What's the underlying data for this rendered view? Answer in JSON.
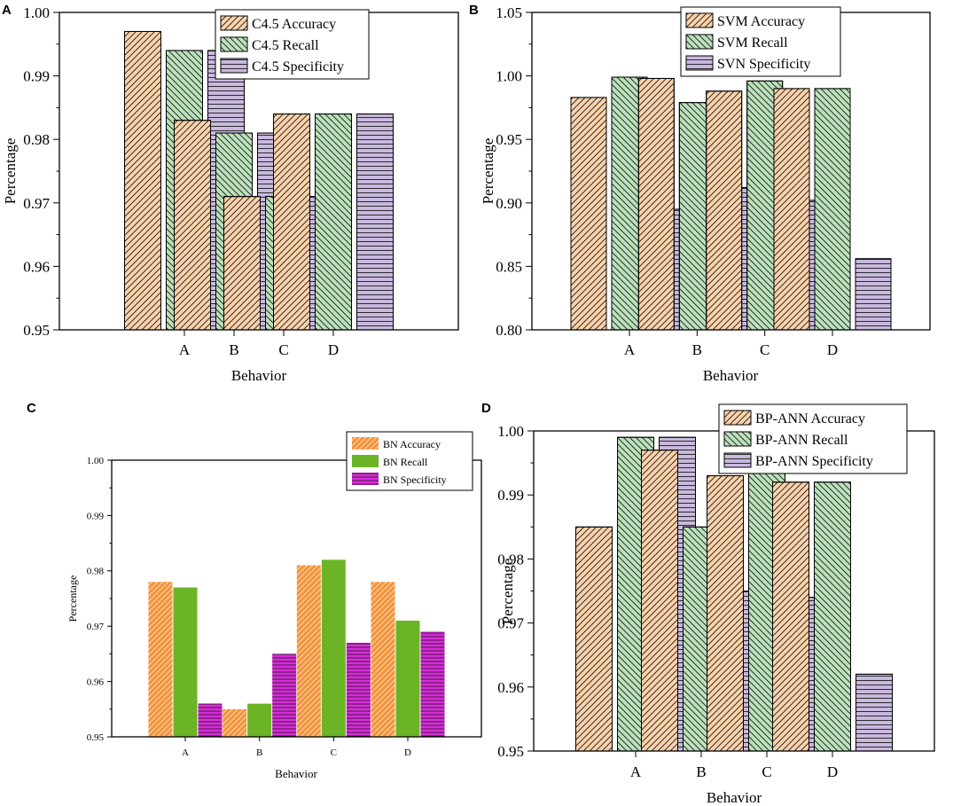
{
  "chart_data": [
    {
      "panel": "A",
      "type": "bar",
      "categories": [
        "A",
        "B",
        "C",
        "D"
      ],
      "xlabel": "Behavior",
      "ylabel": "Percentage",
      "ylim": [
        0.95,
        1.0
      ],
      "yticks": [
        "0.95",
        "0.96",
        "0.97",
        "0.98",
        "0.99",
        "1.00"
      ],
      "legend_position": "top-center",
      "series": [
        {
          "name": "C4.5 Accuracy",
          "values": [
            0.997,
            0.983,
            0.971,
            0.984
          ],
          "color": "#FAD2AA",
          "pattern": "diagonal"
        },
        {
          "name": "C4.5 Recall",
          "values": [
            0.994,
            0.981,
            0.971,
            0.984
          ],
          "color": "#BBE2BB",
          "pattern": "backdiagonal"
        },
        {
          "name": "C4.5 Specificity",
          "values": [
            0.994,
            0.981,
            0.971,
            0.984
          ],
          "color": "#C9B9DE",
          "pattern": "horizontal"
        }
      ]
    },
    {
      "panel": "B",
      "type": "bar",
      "categories": [
        "A",
        "B",
        "C",
        "D"
      ],
      "xlabel": "Behavior",
      "ylabel": "Percentage",
      "ylim": [
        0.8,
        1.05
      ],
      "yticks": [
        "0.80",
        "0.85",
        "0.90",
        "0.95",
        "1.00",
        "1.05"
      ],
      "legend_position": "top-center",
      "series": [
        {
          "name": "SVM Accuracy",
          "values": [
            0.983,
            0.998,
            0.988,
            0.99
          ],
          "color": "#FAD2AA",
          "pattern": "diagonal"
        },
        {
          "name": "SVM Recall",
          "values": [
            0.999,
            0.979,
            0.996,
            0.99
          ],
          "color": "#BBE2BB",
          "pattern": "backdiagonal"
        },
        {
          "name": "SVN Specificity",
          "values": [
            0.895,
            0.912,
            0.902,
            0.856
          ],
          "color": "#C9B9DE",
          "pattern": "horizontal"
        }
      ]
    },
    {
      "panel": "C",
      "type": "bar",
      "categories": [
        "A",
        "B",
        "C",
        "D"
      ],
      "xlabel": "Behavior",
      "ylabel": "Percentage",
      "ylim": [
        0.95,
        1.0
      ],
      "yticks": [
        "0.95",
        "0.96",
        "0.97",
        "0.98",
        "0.99",
        "1.00"
      ],
      "legend_position": "top-right",
      "series": [
        {
          "name": "BN Accuracy",
          "values": [
            0.978,
            0.955,
            0.981,
            0.978
          ],
          "color": "#F5943A",
          "pattern": "diagonal"
        },
        {
          "name": "BN Recall",
          "values": [
            0.977,
            0.956,
            0.982,
            0.971
          ],
          "color": "#6BB425",
          "pattern": "none"
        },
        {
          "name": "BN Specificity",
          "values": [
            0.956,
            0.965,
            0.967,
            0.969
          ],
          "color": "#D92BD9",
          "pattern": "horizontal"
        }
      ]
    },
    {
      "panel": "D",
      "type": "bar",
      "categories": [
        "A",
        "B",
        "C",
        "D"
      ],
      "xlabel": "Behavior",
      "ylabel": "Percentage",
      "ylim": [
        0.95,
        1.0
      ],
      "yticks": [
        "0.95",
        "0.96",
        "0.97",
        "0.98",
        "0.99",
        "1.00"
      ],
      "legend_position": "top-center",
      "series": [
        {
          "name": "BP-ANN Accuracy",
          "values": [
            0.985,
            0.997,
            0.993,
            0.992
          ],
          "color": "#FAD2AA",
          "pattern": "diagonal"
        },
        {
          "name": "BP-ANN Recall",
          "values": [
            0.999,
            0.985,
            0.994,
            0.992
          ],
          "color": "#BBE2BB",
          "pattern": "backdiagonal"
        },
        {
          "name": "BP-ANN Specificity",
          "values": [
            0.999,
            0.975,
            0.974,
            0.962
          ],
          "color": "#C9B9DE",
          "pattern": "horizontal"
        }
      ]
    }
  ]
}
